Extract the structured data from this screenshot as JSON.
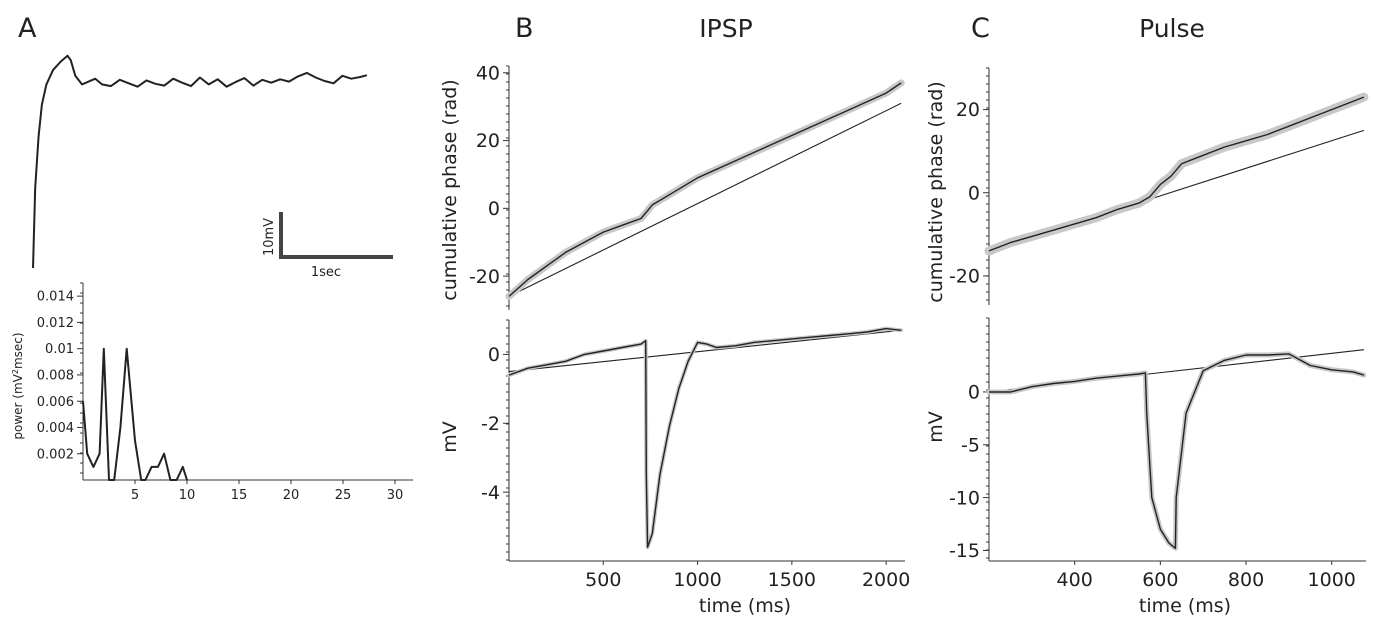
{
  "panels": {
    "A": {
      "letter": "A"
    },
    "B": {
      "letter": "B",
      "title": "IPSP"
    },
    "C": {
      "letter": "C",
      "title": "Pulse"
    }
  },
  "colors": {
    "line": "#222222",
    "band": "#c8c8c8",
    "axis": "#333333",
    "scalebar": "#444444"
  },
  "scale_bar": {
    "voltage_label": "10mV",
    "time_label": "1sec"
  },
  "chart_data": [
    {
      "id": "A-trace",
      "type": "line",
      "title": "",
      "xlabel": "",
      "ylabel": "",
      "axes_visible": false,
      "xlim": [
        0,
        3.1
      ],
      "ylim": [
        -32,
        6
      ],
      "x": [
        0,
        0.02,
        0.05,
        0.08,
        0.12,
        0.18,
        0.25,
        0.31,
        0.34,
        0.38,
        0.44,
        0.5,
        0.56,
        0.62,
        0.7,
        0.78,
        0.86,
        0.94,
        1.02,
        1.1,
        1.18,
        1.26,
        1.34,
        1.42,
        1.5,
        1.58,
        1.66,
        1.74,
        1.82,
        1.9,
        1.98,
        2.06,
        2.14,
        2.22,
        2.3,
        2.38,
        2.46,
        2.54,
        2.62,
        2.7,
        2.78,
        2.86,
        2.94,
        3.0
      ],
      "series": [
        {
          "values": [
            -32,
            -18,
            -9,
            -3.5,
            0,
            2.5,
            4,
            5,
            4.2,
            1.5,
            0,
            0.5,
            1,
            0,
            -0.3,
            0.8,
            0.2,
            -0.4,
            0.7,
            0.1,
            -0.2,
            1,
            0.3,
            -0.3,
            1.2,
            0,
            0.9,
            -0.4,
            0.4,
            1.1,
            -0.2,
            0.8,
            0.3,
            0.9,
            0.5,
            1.4,
            2,
            1.2,
            0.6,
            0.2,
            1.5,
            1,
            1.3,
            1.6
          ]
        }
      ]
    },
    {
      "id": "A-spectrum",
      "type": "line",
      "title": "",
      "xlabel": "",
      "ylabel": "power (mV²msec)",
      "ylabel_main": "power (mV",
      "ylabel_sup": "2",
      "ylabel_tail": "msec)",
      "xlim": [
        0,
        30
      ],
      "ylim": [
        0,
        0.015
      ],
      "xticks": [
        5,
        10,
        15,
        20,
        25,
        30
      ],
      "yticks": [
        0.002,
        0.004,
        0.006,
        0.008,
        0.01,
        0.012,
        0.014
      ],
      "ytick_labels": [
        "0.002",
        "0.004",
        "0.006",
        "0.008",
        "0.01",
        "0.012",
        "0.014"
      ],
      "x": [
        0,
        0.4,
        1,
        1.6,
        2,
        2.5,
        3,
        3.6,
        4.2,
        5,
        5.6,
        6,
        6.6,
        7.2,
        7.8,
        8.4,
        9,
        9.6,
        10
      ],
      "series": [
        {
          "values": [
            0.006,
            0.002,
            0.001,
            0.002,
            0.01,
            0,
            0,
            0.004,
            0.01,
            0.003,
            0,
            0,
            0.001,
            0.001,
            0.002,
            0,
            0,
            0.001,
            0
          ]
        }
      ]
    },
    {
      "id": "B-phase",
      "type": "line",
      "title": "IPSP",
      "xlabel": "",
      "ylabel": "cumulative phase (rad)",
      "xlim": [
        0,
        2100
      ],
      "ylim": [
        -30,
        42
      ],
      "yticks": [
        -20,
        0,
        20,
        40
      ],
      "ytick_labels": [
        "-20",
        "0",
        "20",
        "40"
      ],
      "x": [
        0,
        100,
        200,
        300,
        400,
        500,
        600,
        700,
        730,
        760,
        850,
        1000,
        1200,
        1400,
        1600,
        1800,
        2000,
        2080
      ],
      "series": [
        {
          "role": "reference",
          "x": [
            0,
            2080
          ],
          "values": [
            -26,
            31
          ]
        },
        {
          "role": "mean-with-band",
          "values": [
            -26,
            -21,
            -17,
            -13,
            -10,
            -7,
            -5,
            -3,
            -1,
            1,
            4,
            9,
            14,
            19,
            24,
            29,
            34,
            37
          ]
        }
      ]
    },
    {
      "id": "B-voltage",
      "type": "line",
      "title": "",
      "xlabel": "time (ms)",
      "ylabel": "mV",
      "xlim": [
        0,
        2100
      ],
      "ylim": [
        -6,
        1
      ],
      "xticks": [
        500,
        1000,
        1500,
        2000
      ],
      "xtick_labels": [
        "500",
        "1000",
        "1500",
        "2000"
      ],
      "yticks": [
        -4,
        -2,
        0
      ],
      "ytick_labels": [
        "-4",
        "-2",
        "0"
      ],
      "x": [
        0,
        100,
        200,
        300,
        400,
        500,
        600,
        700,
        725,
        728,
        735,
        760,
        800,
        850,
        900,
        950,
        1000,
        1050,
        1100,
        1200,
        1300,
        1400,
        1500,
        1600,
        1700,
        1800,
        1900,
        2000,
        2080
      ],
      "series": [
        {
          "role": "reference",
          "x": [
            0,
            2080
          ],
          "values": [
            -0.5,
            0.7
          ]
        },
        {
          "role": "mean-with-band",
          "values": [
            -0.6,
            -0.4,
            -0.3,
            -0.2,
            0,
            0.1,
            0.2,
            0.3,
            0.4,
            -3.5,
            -5.6,
            -5.2,
            -3.5,
            -2.1,
            -1,
            -0.2,
            0.35,
            0.3,
            0.2,
            0.25,
            0.35,
            0.4,
            0.45,
            0.5,
            0.55,
            0.6,
            0.65,
            0.75,
            0.7
          ]
        }
      ]
    },
    {
      "id": "C-phase",
      "type": "line",
      "title": "Pulse",
      "xlabel": "",
      "ylabel": "cumulative phase (rad)",
      "xlim": [
        200,
        1080
      ],
      "ylim": [
        -27,
        30
      ],
      "yticks": [
        -20,
        0,
        20
      ],
      "ytick_labels": [
        "-20",
        "0",
        "20"
      ],
      "x": [
        200,
        250,
        300,
        350,
        400,
        450,
        500,
        550,
        575,
        600,
        625,
        650,
        700,
        750,
        800,
        850,
        900,
        950,
        1000,
        1075
      ],
      "series": [
        {
          "role": "reference",
          "x": [
            200,
            1075
          ],
          "values": [
            -14,
            15
          ]
        },
        {
          "role": "mean-with-band",
          "values": [
            -14,
            -12,
            -10.5,
            -9,
            -7.5,
            -6,
            -4,
            -2.5,
            -1,
            2,
            4,
            7,
            9,
            11,
            12.5,
            14,
            16,
            18,
            20,
            23
          ]
        }
      ]
    },
    {
      "id": "C-voltage",
      "type": "line",
      "title": "",
      "xlabel": "time (ms)",
      "ylabel": "mV",
      "xlim": [
        200,
        1080
      ],
      "ylim": [
        -16,
        7
      ],
      "xticks": [
        400,
        600,
        800,
        1000
      ],
      "xtick_labels": [
        "400",
        "600",
        "800",
        "1000"
      ],
      "yticks": [
        -15,
        -10,
        -5,
        0
      ],
      "ytick_labels": [
        "-15",
        "-10",
        "-5",
        "0"
      ],
      "x": [
        200,
        250,
        300,
        350,
        400,
        450,
        500,
        550,
        565,
        568,
        580,
        600,
        620,
        635,
        637,
        660,
        700,
        750,
        800,
        850,
        900,
        950,
        1000,
        1050,
        1075
      ],
      "series": [
        {
          "role": "reference",
          "x": [
            200,
            1075
          ],
          "values": [
            0,
            4
          ]
        },
        {
          "role": "mean-with-band",
          "values": [
            0,
            0,
            0.5,
            0.8,
            1,
            1.3,
            1.5,
            1.7,
            1.8,
            -2,
            -10,
            -13,
            -14.3,
            -14.8,
            -10,
            -2,
            2,
            3,
            3.5,
            3.5,
            3.6,
            2.5,
            2.1,
            1.9,
            1.6
          ]
        }
      ]
    }
  ]
}
